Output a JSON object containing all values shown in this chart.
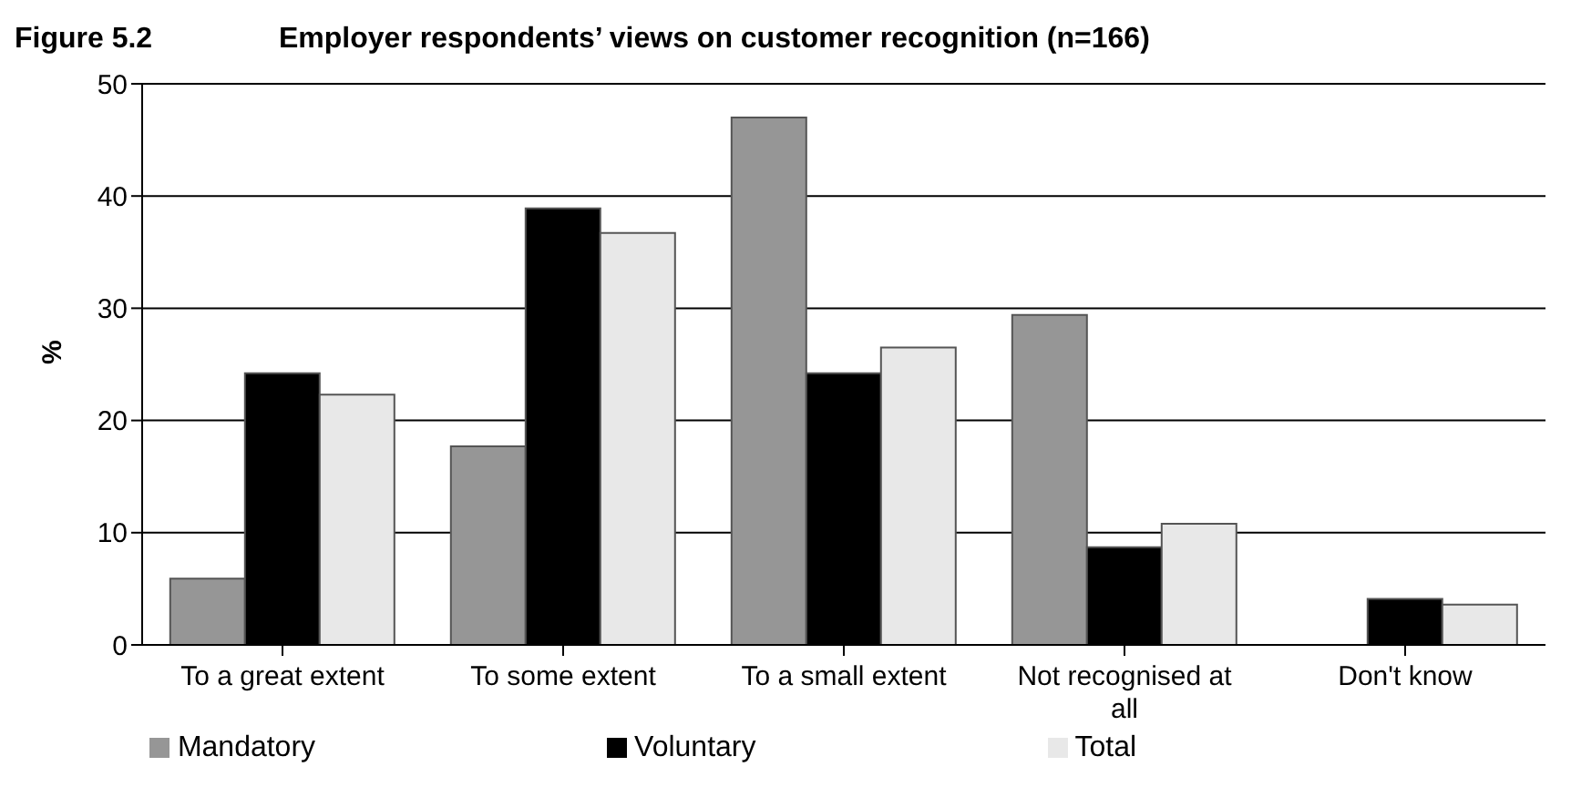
{
  "chart_data": {
    "type": "bar",
    "title": "Figure 5.2",
    "subtitle": "Employer respondents’ views on customer recognition (n=166)",
    "ylabel": "%",
    "categories": [
      "To a great extent",
      "To some extent",
      "To a small extent",
      "Not recognised at all",
      "Don't know"
    ],
    "series": [
      {
        "name": "Mandatory",
        "color": "#969696",
        "values": [
          5.9,
          17.7,
          47.0,
          29.4,
          0
        ]
      },
      {
        "name": "Voluntary",
        "color": "#000000",
        "values": [
          24.2,
          38.9,
          24.2,
          8.7,
          4.1
        ]
      },
      {
        "name": "Total",
        "color": "#e8e8e8",
        "values": [
          22.3,
          36.7,
          26.5,
          10.8,
          3.6
        ]
      }
    ],
    "ylim": [
      0,
      50
    ],
    "yticks": [
      0,
      10,
      20,
      30,
      40,
      50
    ],
    "grid": "y",
    "legend": "bottom"
  }
}
